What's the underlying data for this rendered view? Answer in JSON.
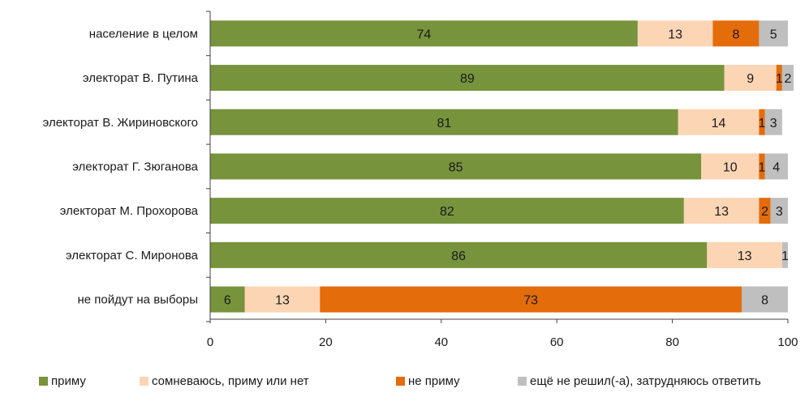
{
  "chart_data": {
    "type": "bar",
    "orientation": "horizontal",
    "stacked": true,
    "categories": [
      "население в целом",
      "электорат В. Путина",
      "электорат В. Жириновского",
      "электорат Г. Зюганова",
      "электорат М. Прохорова",
      "электорат С. Миронова",
      "не пойдут на выборы"
    ],
    "series": [
      {
        "name": "приму",
        "color": "#77933c",
        "values": [
          74,
          89,
          81,
          85,
          82,
          86,
          6
        ],
        "labels": [
          "74",
          "89",
          "81",
          "85",
          "82",
          "86",
          "6"
        ]
      },
      {
        "name": "сомневаюсь, приму или нет",
        "color": "#fcd5b5",
        "values": [
          13,
          9,
          14,
          10,
          13,
          13,
          13
        ],
        "labels": [
          "13",
          "9",
          "14",
          "10",
          "13",
          "13",
          "13"
        ]
      },
      {
        "name": "не приму",
        "color": "#e46c0a",
        "values": [
          8,
          1,
          1,
          1,
          2,
          0,
          73
        ],
        "labels": [
          "8",
          "1",
          "1",
          "1",
          "2",
          "",
          "73"
        ]
      },
      {
        "name": "ещё не решил(-а), затрудняюсь ответить",
        "color": "#bfbfbf",
        "values": [
          5,
          2,
          3,
          4,
          3,
          1,
          8
        ],
        "labels": [
          "5",
          "2",
          "3",
          "4",
          "3",
          "1",
          "8"
        ]
      }
    ],
    "xlim": [
      0,
      100
    ],
    "xticks": [
      "0",
      "20",
      "40",
      "60",
      "80",
      "100"
    ],
    "grid": false,
    "legend_position": "bottom"
  }
}
